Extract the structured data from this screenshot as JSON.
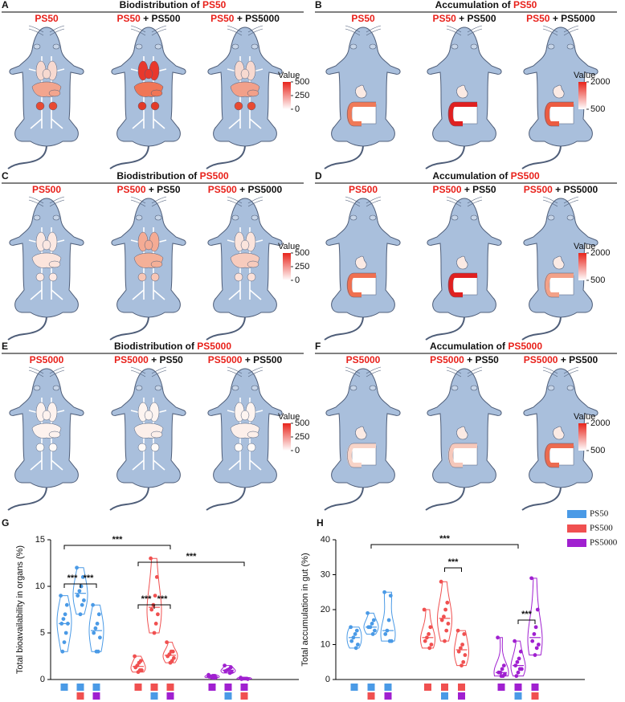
{
  "panels": [
    {
      "letter": "A",
      "kind": "organs",
      "title": {
        "text": "Biodistribution of ",
        "highlight": "PS50"
      },
      "mice": [
        {
          "highlight": "PS50",
          "colors": [
            "#f7d9d0",
            "#f2a58e",
            "#e84a32"
          ]
        },
        {
          "highlight": "PS50",
          "rest": " + PS500",
          "colors": [
            "#e8382c",
            "#f07656",
            "#e23a28"
          ]
        },
        {
          "highlight": "PS50",
          "rest": " + PS5000",
          "colors": [
            "#f7d9d0",
            "#f2a08a",
            "#e84a32"
          ]
        }
      ],
      "colorbar": {
        "title": "Value",
        "ticks": [
          500,
          250,
          0
        ]
      }
    },
    {
      "letter": "B",
      "kind": "gut",
      "title": {
        "text": "Accumulation of ",
        "highlight": "PS50"
      },
      "mice": [
        {
          "highlight": "PS50",
          "colors": [
            "#f07a58"
          ]
        },
        {
          "highlight": "PS50",
          "rest": " + PS500",
          "colors": [
            "#e02020"
          ]
        },
        {
          "highlight": "PS50",
          "rest": " + PS5000",
          "colors": [
            "#ec5b40"
          ]
        }
      ],
      "colorbar": {
        "title": "Value",
        "ticks": [
          2000,
          500
        ]
      }
    },
    {
      "letter": "C",
      "kind": "organs",
      "title": {
        "text": "Biodistribution of ",
        "highlight": "PS500"
      },
      "mice": [
        {
          "highlight": "PS500",
          "colors": [
            "#fbe8e2",
            "#fbe4dc",
            "#fde9e4"
          ]
        },
        {
          "highlight": "PS500",
          "rest": " + PS50",
          "colors": [
            "#f4ab94",
            "#f4b098",
            "#f7c6b6"
          ]
        },
        {
          "highlight": "PS500",
          "rest": " + PS5000",
          "colors": [
            "#fbe4dc",
            "#f7cbbd",
            "#fbe0d8"
          ]
        }
      ],
      "colorbar": {
        "title": "Value",
        "ticks": [
          500,
          250,
          0
        ]
      }
    },
    {
      "letter": "D",
      "kind": "gut",
      "title": {
        "text": "Accumulation of ",
        "highlight": "PS500"
      },
      "mice": [
        {
          "highlight": "PS500",
          "colors": [
            "#f07050"
          ]
        },
        {
          "highlight": "PS500",
          "rest": " + PS50",
          "colors": [
            "#e02020"
          ]
        },
        {
          "highlight": "PS500",
          "rest": " + PS5000",
          "colors": [
            "#f3a188"
          ]
        }
      ],
      "colorbar": {
        "title": "Value",
        "ticks": [
          2000,
          500
        ]
      }
    },
    {
      "letter": "E",
      "kind": "organs",
      "title": {
        "text": "Biodistribution of ",
        "highlight": "PS5000"
      },
      "mice": [
        {
          "highlight": "PS5000",
          "colors": [
            "#fdf2ee",
            "#fdf2ee",
            "#fefaf8"
          ]
        },
        {
          "highlight": "PS5000",
          "rest": " + PS50",
          "colors": [
            "#fdf4f0",
            "#fcefea",
            "#fefaf8"
          ]
        },
        {
          "highlight": "PS5000",
          "rest": " + PS500",
          "colors": [
            "#fdf4f0",
            "#fcefea",
            "#fefaf8"
          ]
        }
      ],
      "colorbar": {
        "title": "Value",
        "ticks": [
          500,
          250,
          0
        ]
      }
    },
    {
      "letter": "F",
      "kind": "gut",
      "title": {
        "text": "Accumulation of ",
        "highlight": "PS5000"
      },
      "mice": [
        {
          "highlight": "PS5000",
          "colors": [
            "#f8d4c8"
          ]
        },
        {
          "highlight": "PS5000",
          "rest": " + PS50",
          "colors": [
            "#f6c8bb"
          ]
        },
        {
          "highlight": "PS5000",
          "rest": " + PS500",
          "colors": [
            "#ec6b50"
          ]
        }
      ],
      "colorbar": {
        "title": "Value",
        "ticks": [
          2000,
          500
        ]
      }
    }
  ],
  "chart_data": [
    {
      "type": "violin",
      "letter": "G",
      "y_label": "Total bioavailability in organs (%)",
      "ylim": [
        0,
        15
      ],
      "yticks": [
        0,
        5,
        10,
        15
      ],
      "series": [
        {
          "color": "#4a9ae6"
        },
        {
          "color": "#f05050"
        },
        {
          "color": "#a020d0"
        }
      ],
      "groups": [
        {
          "series": 0,
          "combo": [
            0
          ],
          "values": [
            9,
            8,
            7,
            6.5,
            6,
            6,
            5,
            4,
            3
          ]
        },
        {
          "series": 0,
          "combo": [
            0,
            1
          ],
          "values": [
            12,
            11,
            10,
            9.5,
            9,
            8.5,
            8,
            7
          ]
        },
        {
          "series": 0,
          "combo": [
            0,
            2
          ],
          "values": [
            8,
            7,
            6,
            5.5,
            5,
            4.5,
            3,
            3
          ]
        },
        {
          "series": 1,
          "combo": [
            1
          ],
          "values": [
            2.5,
            2,
            1.8,
            1.5,
            1.3,
            1,
            1,
            0.8
          ]
        },
        {
          "series": 1,
          "combo": [
            1,
            0
          ],
          "values": [
            13,
            11,
            9,
            8,
            7.5,
            7,
            6,
            5
          ]
        },
        {
          "series": 1,
          "combo": [
            1,
            2
          ],
          "values": [
            4,
            3,
            3,
            2.7,
            2.5,
            2.3,
            2,
            1.8
          ]
        },
        {
          "series": 2,
          "combo": [
            2
          ],
          "values": [
            0.5,
            0.4,
            0.4,
            0.3,
            0.3,
            0.2,
            0.2,
            0.2
          ]
        },
        {
          "series": 2,
          "combo": [
            2,
            0
          ],
          "values": [
            1.5,
            1.3,
            1.1,
            1,
            0.9,
            0.8,
            0.7
          ]
        },
        {
          "series": 2,
          "combo": [
            2,
            1
          ],
          "values": [
            0.2,
            0.1,
            0.1,
            0.1,
            0.05,
            0.05
          ]
        }
      ],
      "annotations": [
        "***",
        "***",
        "***",
        "***",
        "***",
        "***"
      ]
    },
    {
      "type": "violin",
      "letter": "H",
      "y_label": "Total accumulation in gut (%)",
      "ylim": [
        0,
        40
      ],
      "yticks": [
        0,
        10,
        20,
        30,
        40
      ],
      "legend": "upper right",
      "series": [
        {
          "name": "PS50",
          "color": "#4a9ae6"
        },
        {
          "name": "PS500",
          "color": "#f05050"
        },
        {
          "name": "PS5000",
          "color": "#a020d0"
        }
      ],
      "groups": [
        {
          "series": 0,
          "combo": [
            0
          ],
          "values": [
            15,
            14,
            13,
            12,
            11,
            10,
            9
          ]
        },
        {
          "series": 0,
          "combo": [
            0,
            1
          ],
          "values": [
            19,
            17,
            16,
            15,
            15,
            14,
            13
          ]
        },
        {
          "series": 0,
          "combo": [
            0,
            2
          ],
          "values": [
            25,
            24,
            17,
            14,
            13,
            11,
            11
          ]
        },
        {
          "series": 1,
          "combo": [
            1
          ],
          "values": [
            20,
            15,
            13,
            12,
            11,
            10,
            9
          ]
        },
        {
          "series": 1,
          "combo": [
            1,
            0
          ],
          "values": [
            28,
            22,
            20,
            18,
            17,
            16,
            14,
            11
          ]
        },
        {
          "series": 1,
          "combo": [
            1,
            2
          ],
          "values": [
            14,
            13,
            10,
            9,
            8,
            7,
            5,
            4
          ]
        },
        {
          "series": 2,
          "combo": [
            2
          ],
          "values": [
            12,
            4,
            3,
            2,
            2,
            1.5,
            1,
            1
          ]
        },
        {
          "series": 2,
          "combo": [
            2,
            0
          ],
          "values": [
            11,
            8,
            6,
            5,
            4,
            3,
            3,
            2,
            1
          ]
        },
        {
          "series": 2,
          "combo": [
            2,
            1
          ],
          "values": [
            29,
            20,
            15,
            13,
            11,
            10,
            9,
            7
          ]
        }
      ],
      "annotations": [
        "***",
        "***",
        "***"
      ]
    }
  ]
}
